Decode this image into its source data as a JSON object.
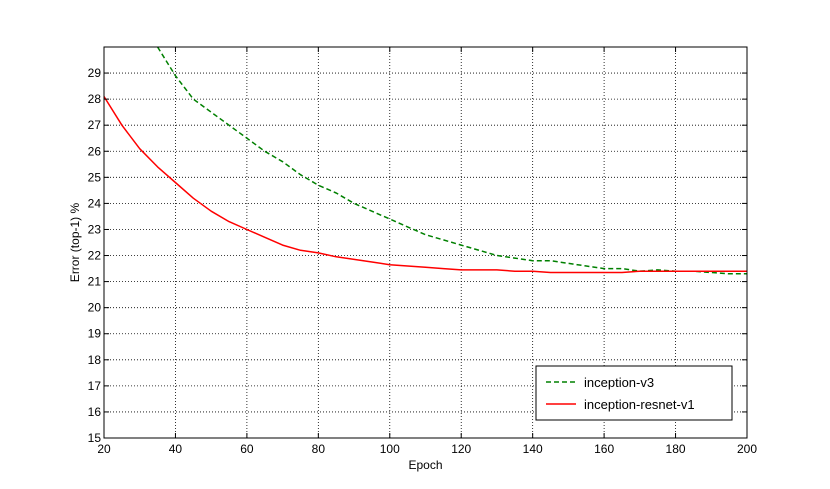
{
  "chart_data": {
    "type": "line",
    "title": "",
    "xlabel": "Epoch",
    "ylabel": "Error (top-1) %",
    "xlim": [
      20,
      200
    ],
    "ylim": [
      15,
      30
    ],
    "xticks": [
      "20",
      "40",
      "60",
      "80",
      "100",
      "120",
      "140",
      "160",
      "180",
      "200"
    ],
    "yticks": [
      "15",
      "16",
      "17",
      "18",
      "19",
      "20",
      "21",
      "22",
      "23",
      "24",
      "25",
      "26",
      "27",
      "28",
      "29"
    ],
    "grid": true,
    "legend_position": "lower-right",
    "series": [
      {
        "name": "inception-v3",
        "color": "#008000",
        "linestyle": "dashed",
        "x": [
          35,
          40,
          45,
          50,
          55,
          60,
          65,
          70,
          75,
          80,
          85,
          90,
          95,
          100,
          105,
          110,
          115,
          120,
          125,
          130,
          135,
          140,
          145,
          150,
          155,
          160,
          165,
          170,
          175,
          180,
          185,
          190,
          195,
          200
        ],
        "y": [
          30.0,
          28.9,
          28.0,
          27.5,
          27.0,
          26.5,
          26.0,
          25.6,
          25.1,
          24.7,
          24.4,
          24.0,
          23.7,
          23.4,
          23.1,
          22.8,
          22.6,
          22.4,
          22.2,
          22.0,
          21.9,
          21.8,
          21.8,
          21.7,
          21.6,
          21.5,
          21.5,
          21.4,
          21.45,
          21.4,
          21.4,
          21.35,
          21.3,
          21.3
        ]
      },
      {
        "name": "inception-resnet-v1",
        "color": "#ff0000",
        "linestyle": "solid",
        "x": [
          20,
          25,
          30,
          35,
          40,
          45,
          50,
          55,
          60,
          65,
          70,
          75,
          80,
          85,
          90,
          95,
          100,
          105,
          110,
          115,
          120,
          125,
          130,
          135,
          140,
          145,
          150,
          155,
          160,
          165,
          170,
          175,
          180,
          185,
          190,
          195,
          200
        ],
        "y": [
          28.1,
          27.0,
          26.1,
          25.4,
          24.8,
          24.2,
          23.7,
          23.3,
          23.0,
          22.7,
          22.4,
          22.2,
          22.1,
          21.95,
          21.85,
          21.75,
          21.65,
          21.6,
          21.55,
          21.5,
          21.45,
          21.45,
          21.45,
          21.4,
          21.4,
          21.35,
          21.35,
          21.35,
          21.35,
          21.35,
          21.4,
          21.4,
          21.4,
          21.4,
          21.4,
          21.4,
          21.4
        ]
      }
    ]
  }
}
